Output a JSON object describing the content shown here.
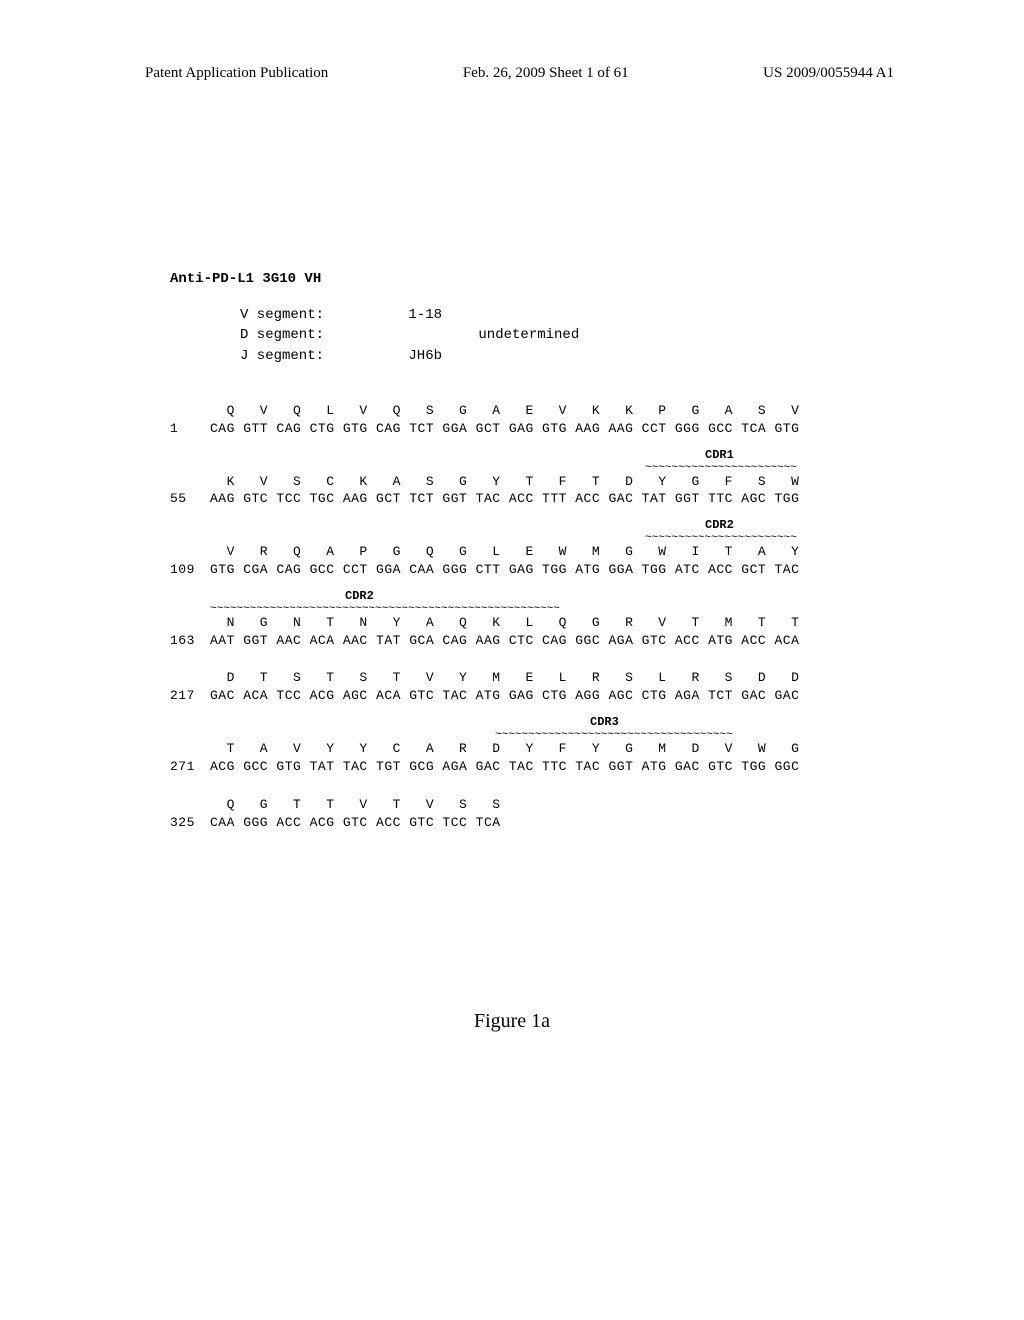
{
  "header": {
    "left": "Patent Application Publication",
    "center": "Feb. 26, 2009  Sheet 1 of 61",
    "right": "US 2009/0055944 A1"
  },
  "sequence": {
    "title": "Anti-PD-L1 3G10 VH",
    "segments": {
      "v": {
        "label": "V segment:",
        "value": "1-18"
      },
      "d": {
        "label": "D segment:",
        "value": "undetermined"
      },
      "j": {
        "label": "J segment:",
        "value": "JH6b"
      }
    },
    "rows": [
      {
        "pos": "1",
        "aa": "  Q   V   Q   L   V   Q   S   G   A   E   V   K   K   P   G   A   S   V",
        "nt": "CAG GTT CAG CTG GTG CAG TCT GGA GCT GAG GTG AAG AAG CCT GGG GCC TCA GTG"
      },
      {
        "pos": "55",
        "aa": "  K   V   S   C   K   A   S   G   Y   T   F   T   D   Y   G   F   S   W",
        "nt": "AAG GTC TCC TGC AAG GCT TCT GGT TAC ACC TTT ACC GAC TAT GGT TTC AGC TGG",
        "cdr": {
          "label": "CDR1",
          "labelLeft": 535,
          "labelTop": -26,
          "underlineLeft": 475,
          "underlineTop": -13,
          "underlineText": "~~~~~~~~~~~~~~~~~~~~~~~"
        }
      },
      {
        "pos": "109",
        "aa": "  V   R   Q   A   P   G   Q   G   L   E   W   M   G   W   I   T   A   Y",
        "nt": "GTG CGA CAG GCC CCT GGA CAA GGG CTT GAG TGG ATG GGA TGG ATC ACC GCT TAC",
        "cdr": {
          "label": "CDR2",
          "labelLeft": 535,
          "labelTop": -26,
          "underlineLeft": 475,
          "underlineTop": -13,
          "underlineText": "~~~~~~~~~~~~~~~~~~~~~~~"
        }
      },
      {
        "pos": "163",
        "aa": "  N   G   N   T   N   Y   A   Q   K   L   Q   G   R   V   T   M   T   T",
        "nt": "AAT GGT AAC ACA AAC TAT GCA CAG AAG CTC CAG GGC AGA GTC ACC ATG ACC ACA",
        "cdr": {
          "label": "CDR2",
          "labelLeft": 175,
          "labelTop": -26,
          "underlineLeft": 40,
          "underlineTop": -13,
          "underlineText": "~~~~~~~~~~~~~~~~~~~~~~~~~~~~~~~~~~~~~~~~~~~~~~~~~~~~~"
        }
      },
      {
        "pos": "217",
        "aa": "  D   T   S   T   S   T   V   Y   M   E   L   R   S   L   R   S   D   D",
        "nt": "GAC ACA TCC ACG AGC ACA GTC TAC ATG GAG CTG AGG AGC CTG AGA TCT GAC GAC",
        "compact": true
      },
      {
        "pos": "271",
        "aa": "  T   A   V   Y   Y   C   A   R   D   Y   F   Y   G   M   D   V   W   G",
        "nt": "ACG GCC GTG TAT TAC TGT GCG AGA GAC TAC TTC TAC GGT ATG GAC GTC TGG GGC",
        "cdr": {
          "label": "CDR3",
          "labelLeft": 420,
          "labelTop": -26,
          "underlineLeft": 325,
          "underlineTop": -13,
          "underlineText": "~~~~~~~~~~~~~~~~~~~~~~~~~~~~~~~~~~~~"
        }
      },
      {
        "pos": "325",
        "aa": "  Q   G   T   T   V   T   V   S   S",
        "nt": "CAA GGG ACC ACG GTC ACC GTC TCC TCA"
      }
    ]
  },
  "figure_label": "Figure 1a",
  "style": {
    "background_color": "#ffffff",
    "text_color": "#000000",
    "header_fontsize": 15,
    "mono_fontsize": 13,
    "figure_fontsize": 20
  }
}
